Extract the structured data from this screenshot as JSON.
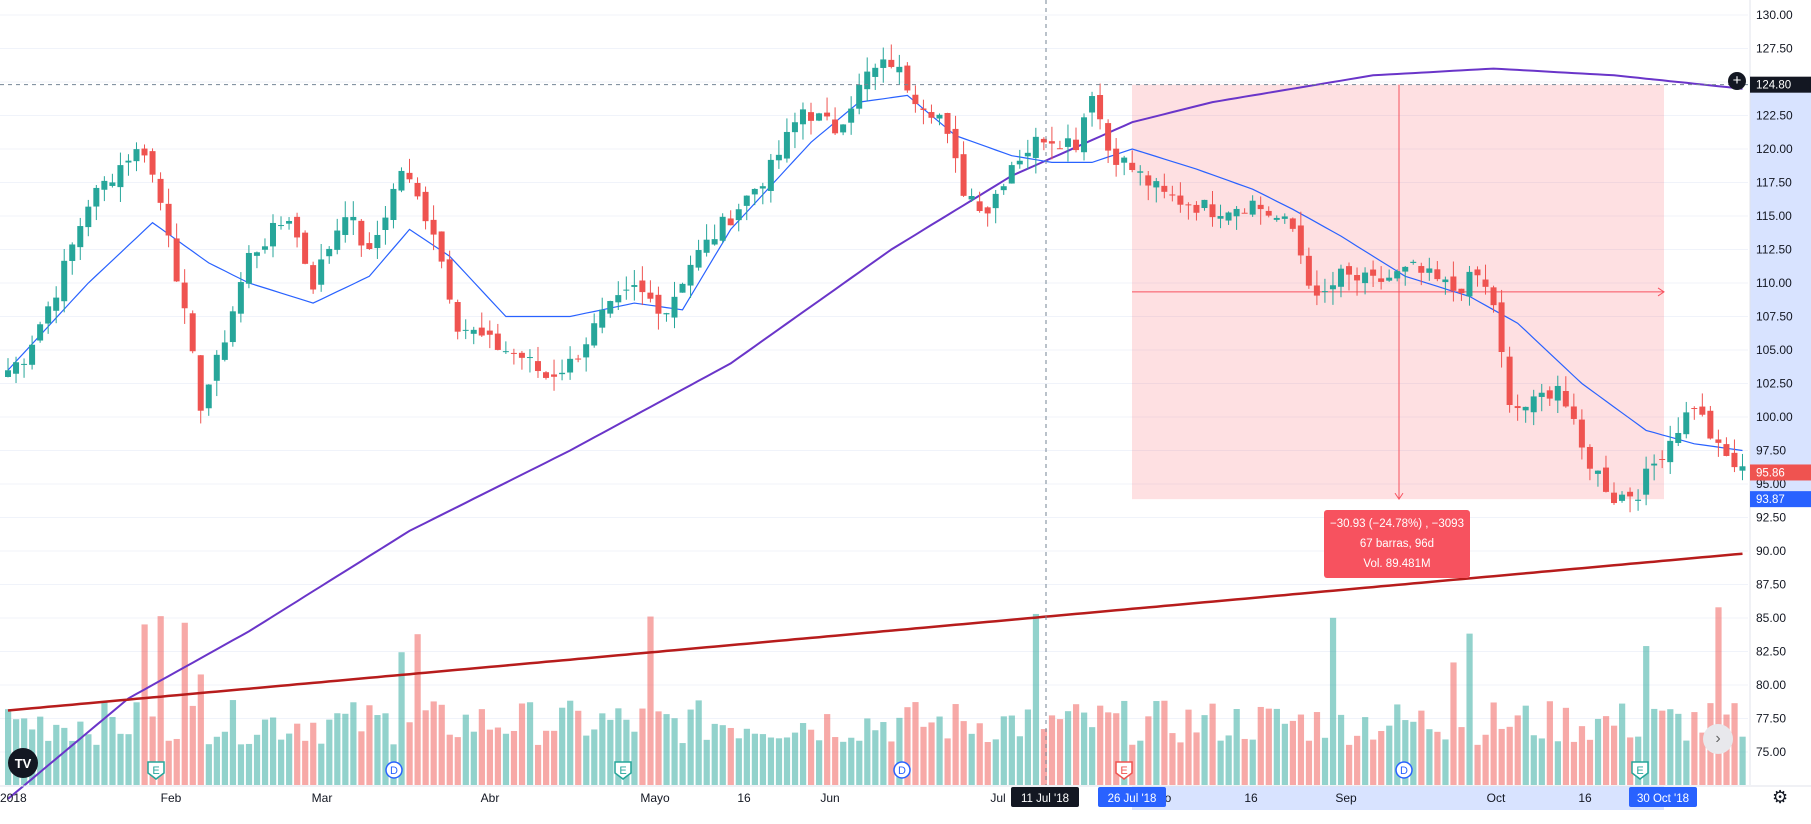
{
  "chart_data": {
    "type": "candlestick",
    "y_axis": {
      "ticks": [
        "130.00",
        "127.50",
        "125.00",
        "122.50",
        "120.00",
        "117.50",
        "115.00",
        "112.50",
        "110.00",
        "107.50",
        "105.00",
        "102.50",
        "100.00",
        "97.50",
        "95.00",
        "92.50",
        "90.00",
        "87.50",
        "85.00",
        "82.50",
        "80.00",
        "77.50",
        "75.00"
      ],
      "range": [
        72.0,
        131.0
      ]
    },
    "x_axis": {
      "ticks": [
        "2018",
        "Feb",
        "Mar",
        "Abr",
        "Mayo",
        "16",
        "Jun",
        "Jul",
        "o",
        "16",
        "Sep",
        "Oct",
        "16"
      ]
    },
    "price_badges": {
      "crosshair": "124.80",
      "last_price": "95.86",
      "measure_low": "93.87"
    },
    "date_badges": {
      "crosshair_date": "11 Jul '18",
      "range_start": "26 Jul '18",
      "range_end": "30 Oct '18"
    },
    "measurement": {
      "line1": "−30.93 (−24.78%) , −3093",
      "line2": "67 barras, 96d",
      "line3": "Vol. 89.481M",
      "from_price": 124.8,
      "to_price": 93.87
    },
    "events": [
      {
        "type": "E",
        "date": "2018-01-31"
      },
      {
        "type": "D",
        "date": "2018-03-08"
      },
      {
        "type": "E",
        "date": "2018-04-30"
      },
      {
        "type": "D",
        "date": "2018-06-07"
      },
      {
        "type": "E",
        "date": "2018-07-26"
      },
      {
        "type": "D",
        "date": "2018-09-06"
      },
      {
        "type": "E",
        "date": "2018-10-30"
      }
    ],
    "series": {
      "price_keypoints": [
        [
          0,
          103.5
        ],
        [
          2,
          104.5
        ],
        [
          6,
          109.5
        ],
        [
          10,
          116
        ],
        [
          15,
          119.5
        ],
        [
          17,
          120
        ],
        [
          20,
          114
        ],
        [
          24,
          101
        ],
        [
          26,
          104
        ],
        [
          30,
          112
        ],
        [
          35,
          115
        ],
        [
          38,
          110
        ],
        [
          42,
          115.5
        ],
        [
          45,
          112
        ],
        [
          49,
          118.5
        ],
        [
          53,
          114
        ],
        [
          56,
          107
        ],
        [
          60,
          105.5
        ],
        [
          64,
          104.5
        ],
        [
          67,
          103
        ],
        [
          70,
          104
        ],
        [
          74,
          107.5
        ],
        [
          78,
          109.5
        ],
        [
          82,
          108
        ],
        [
          85,
          111.5
        ],
        [
          90,
          115
        ],
        [
          95,
          118.5
        ],
        [
          99,
          123
        ],
        [
          103,
          121.5
        ],
        [
          107,
          125.5
        ],
        [
          110,
          126.5
        ],
        [
          113,
          124
        ],
        [
          116,
          122.5
        ],
        [
          119,
          117
        ],
        [
          122,
          115.5
        ],
        [
          125,
          119
        ],
        [
          129,
          121
        ],
        [
          133,
          120.5
        ],
        [
          135,
          124.5
        ],
        [
          137,
          120
        ],
        [
          140,
          118.5
        ],
        [
          144,
          116.5
        ],
        [
          150,
          115.5
        ],
        [
          155,
          116
        ],
        [
          160,
          114
        ],
        [
          163,
          108.5
        ],
        [
          166,
          110.5
        ],
        [
          170,
          110
        ],
        [
          175,
          111
        ],
        [
          180,
          109.5
        ],
        [
          183,
          110.5
        ],
        [
          185,
          108.5
        ],
        [
          187,
          100.5
        ],
        [
          190,
          101
        ],
        [
          193,
          102.5
        ],
        [
          196,
          97.5
        ],
        [
          200,
          94
        ],
        [
          203,
          94.5
        ],
        [
          206,
          97.5
        ],
        [
          210,
          101
        ],
        [
          213,
          97.5
        ],
        [
          216,
          95.86
        ]
      ],
      "ma_fast_keypoints": [
        [
          0,
          103.5
        ],
        [
          10,
          110
        ],
        [
          18,
          114.5
        ],
        [
          25,
          111.5
        ],
        [
          30,
          110
        ],
        [
          38,
          108.5
        ],
        [
          45,
          110.5
        ],
        [
          50,
          114
        ],
        [
          55,
          112
        ],
        [
          62,
          107.5
        ],
        [
          70,
          107.5
        ],
        [
          78,
          108.5
        ],
        [
          84,
          108
        ],
        [
          90,
          114
        ],
        [
          100,
          120.5
        ],
        [
          106,
          123.5
        ],
        [
          112,
          124
        ],
        [
          118,
          121
        ],
        [
          125,
          119.5
        ],
        [
          130,
          119
        ],
        [
          135,
          119
        ],
        [
          140,
          120
        ],
        [
          148,
          118.5
        ],
        [
          155,
          117
        ],
        [
          160,
          115.5
        ],
        [
          166,
          113.5
        ],
        [
          174,
          110.5
        ],
        [
          182,
          109
        ],
        [
          188,
          107
        ],
        [
          196,
          102.5
        ],
        [
          204,
          99
        ],
        [
          210,
          98
        ],
        [
          216,
          97.5
        ]
      ],
      "ma_slow_keypoints": [
        [
          0,
          71.5
        ],
        [
          15,
          79
        ],
        [
          30,
          84
        ],
        [
          50,
          91.5
        ],
        [
          70,
          97.5
        ],
        [
          90,
          104
        ],
        [
          110,
          112.5
        ],
        [
          125,
          118
        ],
        [
          140,
          122
        ],
        [
          150,
          123.5
        ],
        [
          170,
          125.5
        ],
        [
          185,
          126
        ],
        [
          200,
          125.5
        ],
        [
          216,
          124.5
        ]
      ],
      "ma_volume_keypoints": [
        [
          0,
          78.1
        ],
        [
          216,
          89.8
        ]
      ],
      "volume_scale_note": "volume heights are relative"
    }
  },
  "colors": {
    "up": "#26a69a",
    "down": "#ef5350",
    "ma_fast": "#2962ff",
    "ma_slow": "#6a35c9",
    "ma_volume": "#b71c1c",
    "measure_fill": "#f7525f",
    "badge_blue": "#2962ff",
    "badge_dark": "#131722"
  },
  "ui": {
    "logo_text": "TV",
    "scroll_icon": "›",
    "settings_icon": "⚙",
    "add_icon": "+"
  }
}
